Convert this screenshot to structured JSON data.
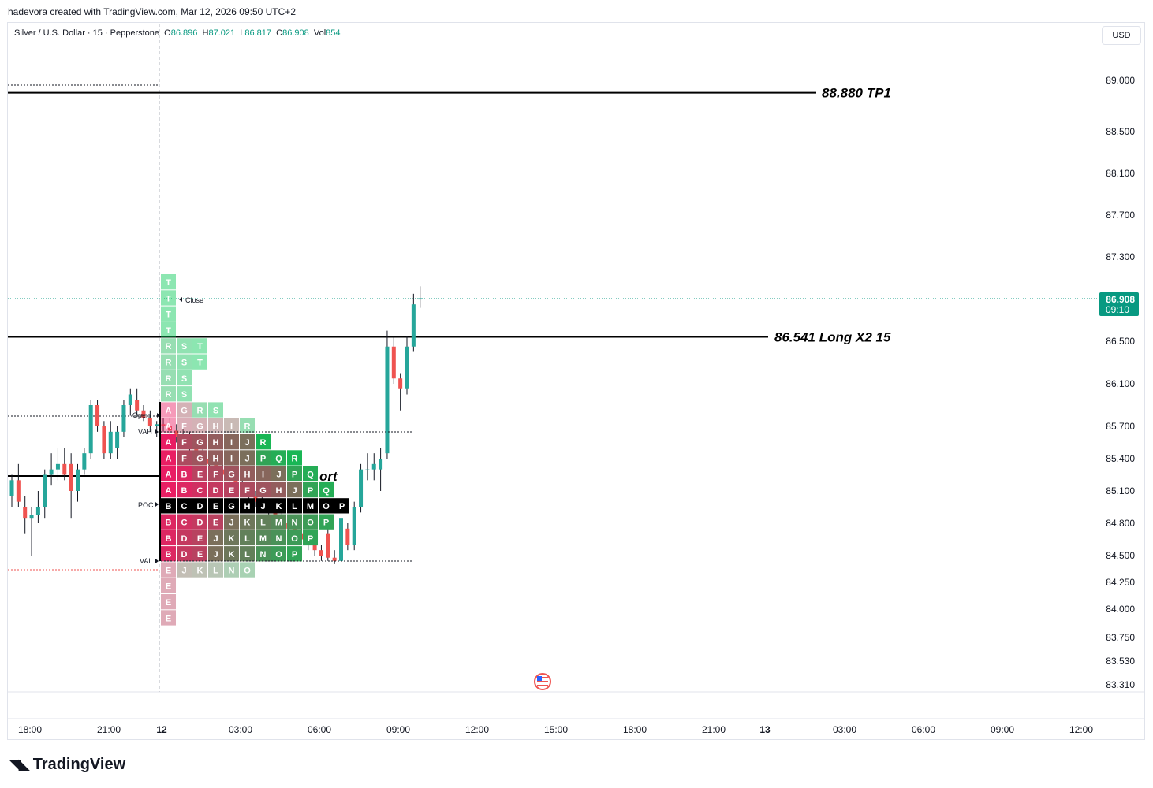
{
  "header": {
    "text": "hadevora created with TradingView.com, Mar 12, 2026 09:50 UTC+2"
  },
  "legend": {
    "symbol": "Silver / U.S. Dollar · 15 · Pepperstone",
    "o_label": "O",
    "o_value": "86.896",
    "h_label": "H",
    "h_value": "87.021",
    "l_label": "L",
    "l_value": "86.817",
    "c_label": "C",
    "c_value": "86.908",
    "vol_label": "Vol",
    "vol_value": "854"
  },
  "currency_button": "USD",
  "brand": {
    "name": "TradingView"
  },
  "colors": {
    "up": "#26a69a",
    "down": "#ef5350",
    "profile_pink": "#e91e63",
    "profile_green": "#00c853",
    "poc": "#000000",
    "price_tag": "#089981"
  },
  "chart_data": {
    "type": "candlestick",
    "symbol": "XAGUSD",
    "timeframe": "15",
    "y_ticks": [
      "89.000",
      "88.500",
      "88.100",
      "87.700",
      "87.300",
      "86.500",
      "86.100",
      "85.700",
      "85.400",
      "85.100",
      "84.800",
      "84.500",
      "84.250",
      "84.000",
      "83.750",
      "83.530",
      "83.310"
    ],
    "x_ticks": [
      "18:00",
      "21:00",
      "12",
      "03:00",
      "06:00",
      "09:00",
      "12:00",
      "15:00",
      "18:00",
      "21:00",
      "13",
      "03:00",
      "06:00",
      "09:00",
      "12:00"
    ],
    "last_price": {
      "price": "86.908",
      "countdown": "09:10"
    },
    "horizontal_lines": [
      {
        "price": 88.88,
        "label": "88.880 TP1"
      },
      {
        "price": 86.541,
        "label": "86.541 Long X2 15"
      },
      {
        "price": 85.27,
        "label": "ort"
      }
    ],
    "profile_levels": {
      "open": "Open",
      "close": "Close",
      "vah": "VAH",
      "poc": "POC",
      "val": "VAL"
    },
    "tpo_rows": [
      "T",
      "T",
      "T",
      "T",
      "RST",
      "RST",
      "RS",
      "RS",
      "AGRS",
      "AFGHIR",
      "AFGHIJR",
      "AFGHIJPQR",
      "ABEFGHIJPQ",
      "ABCDEFGHJPQ",
      "BCDEGHJKLMOP",
      "BCDEJKLMNOP",
      "BDEJKLMNOP",
      "BDEJKLNOP",
      "EJKLNO",
      "E",
      "E",
      "E"
    ],
    "candles": [
      {
        "o": 85.05,
        "h": 85.25,
        "l": 84.95,
        "c": 85.2
      },
      {
        "o": 85.2,
        "h": 85.35,
        "l": 84.95,
        "c": 85.0
      },
      {
        "o": 84.95,
        "h": 85.05,
        "l": 84.7,
        "c": 84.85
      },
      {
        "o": 84.85,
        "h": 84.95,
        "l": 84.5,
        "c": 84.88
      },
      {
        "o": 84.88,
        "h": 85.1,
        "l": 84.8,
        "c": 84.95
      },
      {
        "o": 84.95,
        "h": 85.3,
        "l": 84.85,
        "c": 85.25
      },
      {
        "o": 85.25,
        "h": 85.45,
        "l": 85.15,
        "c": 85.3
      },
      {
        "o": 85.3,
        "h": 85.5,
        "l": 85.2,
        "c": 85.35
      },
      {
        "o": 85.35,
        "h": 85.5,
        "l": 85.2,
        "c": 85.25
      },
      {
        "o": 85.35,
        "h": 85.45,
        "l": 84.85,
        "c": 85.1
      },
      {
        "o": 85.1,
        "h": 85.35,
        "l": 85.0,
        "c": 85.3
      },
      {
        "o": 85.3,
        "h": 85.5,
        "l": 85.25,
        "c": 85.45
      },
      {
        "o": 85.45,
        "h": 85.95,
        "l": 85.4,
        "c": 85.9
      },
      {
        "o": 85.9,
        "h": 85.95,
        "l": 85.65,
        "c": 85.7
      },
      {
        "o": 85.7,
        "h": 85.75,
        "l": 85.4,
        "c": 85.45
      },
      {
        "o": 85.45,
        "h": 85.75,
        "l": 85.4,
        "c": 85.65
      },
      {
        "o": 85.5,
        "h": 85.7,
        "l": 85.4,
        "c": 85.65
      },
      {
        "o": 85.65,
        "h": 85.95,
        "l": 85.6,
        "c": 85.9
      },
      {
        "o": 85.9,
        "h": 86.05,
        "l": 85.8,
        "c": 86.0
      },
      {
        "o": 85.95,
        "h": 86.05,
        "l": 85.8,
        "c": 85.85
      },
      {
        "o": 85.85,
        "h": 85.9,
        "l": 85.75,
        "c": 85.78
      },
      {
        "o": 85.78,
        "h": 85.85,
        "l": 85.65,
        "c": 85.7
      },
      {
        "o": 85.7,
        "h": 85.75,
        "l": 85.6,
        "c": 85.72
      },
      {
        "o": 85.72,
        "h": 85.78,
        "l": 85.65,
        "c": 85.7
      },
      {
        "o": 85.7,
        "h": 85.78,
        "l": 85.62,
        "c": 85.66
      },
      {
        "o": 85.66,
        "h": 85.72,
        "l": 85.55,
        "c": 85.6
      },
      {
        "o": 85.6,
        "h": 85.68,
        "l": 85.5,
        "c": 85.55
      },
      {
        "o": 85.55,
        "h": 85.65,
        "l": 85.45,
        "c": 85.5
      },
      {
        "o": 85.5,
        "h": 85.55,
        "l": 85.4,
        "c": 85.45
      },
      {
        "o": 85.45,
        "h": 85.5,
        "l": 85.35,
        "c": 85.4
      },
      {
        "o": 85.4,
        "h": 85.45,
        "l": 85.3,
        "c": 85.35
      },
      {
        "o": 85.35,
        "h": 85.4,
        "l": 85.25,
        "c": 85.3
      },
      {
        "o": 85.3,
        "h": 85.35,
        "l": 85.2,
        "c": 85.25
      },
      {
        "o": 85.25,
        "h": 85.3,
        "l": 85.15,
        "c": 85.2
      },
      {
        "o": 85.2,
        "h": 85.25,
        "l": 85.1,
        "c": 85.15
      },
      {
        "o": 85.15,
        "h": 85.2,
        "l": 85.05,
        "c": 85.1
      },
      {
        "o": 85.1,
        "h": 85.15,
        "l": 85.0,
        "c": 85.05
      },
      {
        "o": 85.05,
        "h": 85.1,
        "l": 84.95,
        "c": 85.0
      },
      {
        "o": 85.0,
        "h": 85.05,
        "l": 84.9,
        "c": 84.95
      },
      {
        "o": 84.95,
        "h": 85.0,
        "l": 84.85,
        "c": 84.9
      },
      {
        "o": 84.9,
        "h": 84.95,
        "l": 84.8,
        "c": 84.85
      },
      {
        "o": 84.85,
        "h": 84.9,
        "l": 84.75,
        "c": 84.8
      },
      {
        "o": 84.8,
        "h": 84.85,
        "l": 84.7,
        "c": 84.75
      },
      {
        "o": 84.75,
        "h": 84.8,
        "l": 84.65,
        "c": 84.7
      },
      {
        "o": 84.7,
        "h": 84.75,
        "l": 84.6,
        "c": 84.65
      },
      {
        "o": 84.65,
        "h": 84.7,
        "l": 84.55,
        "c": 84.6
      },
      {
        "o": 84.6,
        "h": 84.65,
        "l": 84.5,
        "c": 84.55
      },
      {
        "o": 84.55,
        "h": 84.6,
        "l": 84.45,
        "c": 84.5
      },
      {
        "o": 84.7,
        "h": 84.75,
        "l": 84.45,
        "c": 84.48
      },
      {
        "o": 84.48,
        "h": 84.55,
        "l": 84.42,
        "c": 84.45
      },
      {
        "o": 84.45,
        "h": 84.9,
        "l": 84.42,
        "c": 84.85
      },
      {
        "o": 84.75,
        "h": 84.8,
        "l": 84.55,
        "c": 84.6
      },
      {
        "o": 84.6,
        "h": 85.0,
        "l": 84.55,
        "c": 84.95
      },
      {
        "o": 84.95,
        "h": 85.35,
        "l": 84.9,
        "c": 85.3
      },
      {
        "o": 85.3,
        "h": 85.45,
        "l": 85.2,
        "c": 85.3
      },
      {
        "o": 85.3,
        "h": 85.45,
        "l": 85.2,
        "c": 85.35
      },
      {
        "o": 85.3,
        "h": 85.5,
        "l": 85.1,
        "c": 85.4
      },
      {
        "o": 85.45,
        "h": 86.6,
        "l": 85.4,
        "c": 86.45
      },
      {
        "o": 86.45,
        "h": 86.55,
        "l": 86.1,
        "c": 86.15
      },
      {
        "o": 86.15,
        "h": 86.2,
        "l": 85.85,
        "c": 86.05
      },
      {
        "o": 86.05,
        "h": 86.55,
        "l": 86.0,
        "c": 86.45
      },
      {
        "o": 86.45,
        "h": 86.95,
        "l": 86.4,
        "c": 86.85
      },
      {
        "o": 86.896,
        "h": 87.021,
        "l": 86.817,
        "c": 86.908
      }
    ]
  }
}
